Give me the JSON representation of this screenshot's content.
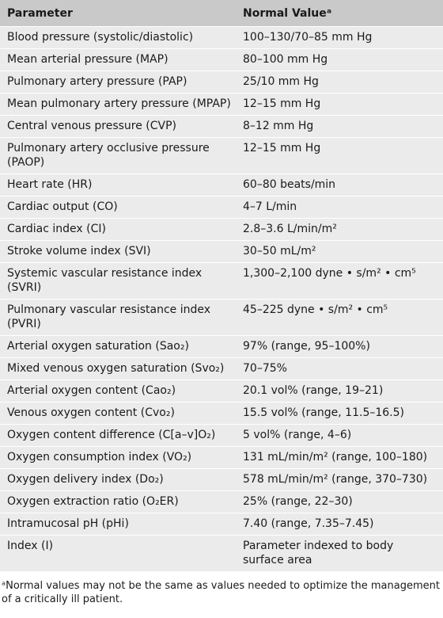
{
  "table": {
    "header": [
      "Parameter",
      "Normal Valueᵃ"
    ],
    "rows": [
      [
        "Blood pressure (systolic/diastolic)",
        "100–130/70–85 mm Hg"
      ],
      [
        "Mean arterial pressure (MAP)",
        "80–100 mm Hg"
      ],
      [
        "Pulmonary artery pressure (PAP)",
        "25/10 mm Hg"
      ],
      [
        "Mean pulmonary artery pressure (MPAP)",
        "12–15 mm Hg"
      ],
      [
        "Central venous pressure (CVP)",
        "8–12 mm Hg"
      ],
      [
        "Pulmonary artery occlusive pressure (PAOP)",
        "12–15 mm Hg"
      ],
      [
        "Heart rate (HR)",
        "60–80 beats/min"
      ],
      [
        "Cardiac output (CO)",
        "4–7 L/min"
      ],
      [
        "Cardiac index (CI)",
        "2.8–3.6 L/min/m²"
      ],
      [
        "Stroke volume index (SVI)",
        "30–50 mL/m²"
      ],
      [
        "Systemic vascular resistance index (SVRI)",
        "1,300–2,100 dyne • s/m² • cm⁵"
      ],
      [
        "Pulmonary vascular resistance index (PVRI)",
        "45–225 dyne • s/m² • cm⁵"
      ],
      [
        "Arterial oxygen saturation (Sao₂)",
        "97% (range, 95–100%)"
      ],
      [
        "Mixed venous oxygen saturation (Svo₂)",
        "70–75%"
      ],
      [
        "Arterial oxygen content (Cao₂)",
        "20.1 vol% (range, 19–21)"
      ],
      [
        "Venous oxygen content (Cvo₂)",
        "15.5 vol% (range, 11.5–16.5)"
      ],
      [
        "Oxygen content difference (C[a–v]O₂)",
        "5 vol% (range, 4–6)"
      ],
      [
        "Oxygen consumption index (VO₂)",
        "131 mL/min/m² (range, 100–180)"
      ],
      [
        "Oxygen delivery index (Do₂)",
        "578 mL/min/m² (range, 370–730)"
      ],
      [
        "Oxygen extraction ratio (O₂ER)",
        "25% (range, 22–30)"
      ],
      [
        "Intramucosal pH (pHi)",
        "7.40 (range, 7.35–7.45)"
      ],
      [
        "Index (I)",
        "Parameter indexed to body surface area"
      ]
    ],
    "footnote": "ᵃNormal values may not be the same as values needed to optimize the management of a critically ill patient."
  }
}
